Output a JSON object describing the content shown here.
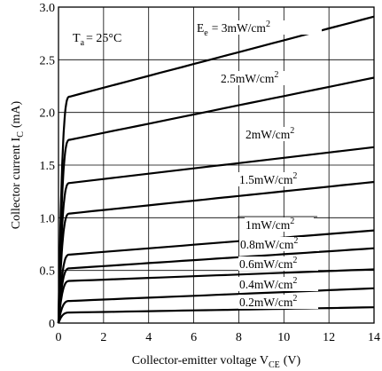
{
  "chart_data": {
    "type": "line",
    "xlabel": "Collector-emitter voltage V",
    "xlabel_sub": "CE",
    "xlabel_unit": "(V)",
    "ylabel": "Collector current I",
    "ylabel_sub": "C",
    "ylabel_unit": "(mA)",
    "condition_label": "T",
    "condition_sub": "a",
    "condition_value": "= 25°C",
    "xlim": [
      0,
      14
    ],
    "ylim": [
      0,
      3.0
    ],
    "x_ticks": [
      0,
      2,
      4,
      6,
      8,
      10,
      12,
      14
    ],
    "y_ticks": [
      0,
      0.5,
      1.0,
      1.5,
      2.0,
      2.5,
      3.0
    ],
    "x_tick_labels": [
      "0",
      "2",
      "4",
      "6",
      "8",
      "10",
      "12",
      "14"
    ],
    "y_tick_labels": [
      "0",
      "0.5",
      "1.0",
      "1.5",
      "2.0",
      "2.5",
      "3.0"
    ],
    "grid": true,
    "series": [
      {
        "name": "E",
        "name_sub": "e",
        "name_value": "= 3mW/cm",
        "name_sup": "2",
        "knee_v": 0.5,
        "sat": 2.15,
        "end": 2.91
      },
      {
        "name": "2.5mW/cm",
        "name_sup": "2",
        "knee_v": 0.5,
        "sat": 1.74,
        "end": 2.33
      },
      {
        "name": "2mW/cm",
        "name_sup": "2",
        "knee_v": 0.5,
        "sat": 1.33,
        "end": 1.67
      },
      {
        "name": "1.5mW/cm",
        "name_sup": "2",
        "knee_v": 0.5,
        "sat": 1.04,
        "end": 1.34
      },
      {
        "name": "1mW/cm",
        "name_sup": "2",
        "knee_v": 0.5,
        "sat": 0.65,
        "end": 0.88
      },
      {
        "name": "0.8mW/cm",
        "name_sup": "2",
        "knee_v": 0.5,
        "sat": 0.52,
        "end": 0.71
      },
      {
        "name": "0.6mW/cm",
        "name_sup": "2",
        "knee_v": 0.5,
        "sat": 0.4,
        "end": 0.51
      },
      {
        "name": "0.4mW/cm",
        "name_sup": "2",
        "knee_v": 0.5,
        "sat": 0.21,
        "end": 0.33
      },
      {
        "name": "0.2mW/cm",
        "name_sup": "2",
        "knee_v": 0.5,
        "sat": 0.1,
        "end": 0.15
      }
    ]
  }
}
